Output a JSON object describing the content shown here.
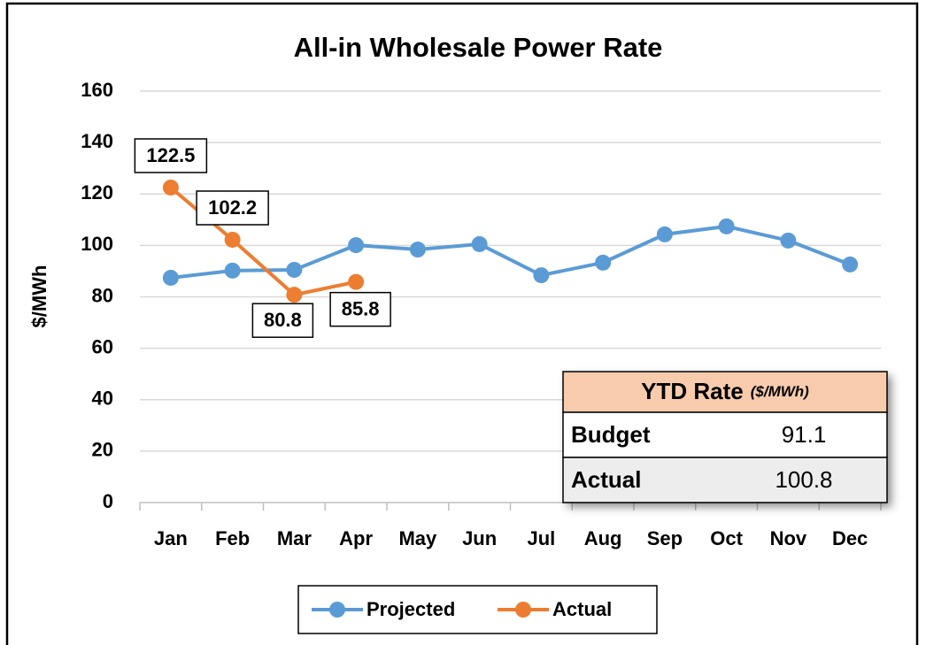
{
  "chart_data": {
    "type": "line",
    "title": "All-in Wholesale Power Rate",
    "y_label": "$/MWh",
    "categories": [
      "Jan",
      "Feb",
      "Mar",
      "Apr",
      "May",
      "Jun",
      "Jul",
      "Aug",
      "Sep",
      "Oct",
      "Nov",
      "Dec"
    ],
    "series": [
      {
        "name": "Projected",
        "color": "#5b9bd5",
        "values": [
          87.4,
          90.2,
          90.5,
          100.1,
          98.4,
          100.5,
          88.4,
          93.3,
          104.3,
          107.4,
          101.9,
          92.6
        ]
      },
      {
        "name": "Actual",
        "color": "#ed7d31",
        "values": [
          122.5,
          102.2,
          80.8,
          85.8,
          null,
          null,
          null,
          null,
          null,
          null,
          null,
          null
        ],
        "show_labels": true
      }
    ],
    "ylim": [
      0,
      160
    ],
    "yticks": [
      0,
      20,
      40,
      60,
      80,
      100,
      120,
      140,
      160
    ],
    "grid": true,
    "legend": "bottom",
    "ytd_table": {
      "title": "YTD Rate",
      "unit": "($/MWh)",
      "rows": [
        [
          "Budget",
          "91.1"
        ],
        [
          "Actual",
          "100.8"
        ]
      ]
    }
  }
}
